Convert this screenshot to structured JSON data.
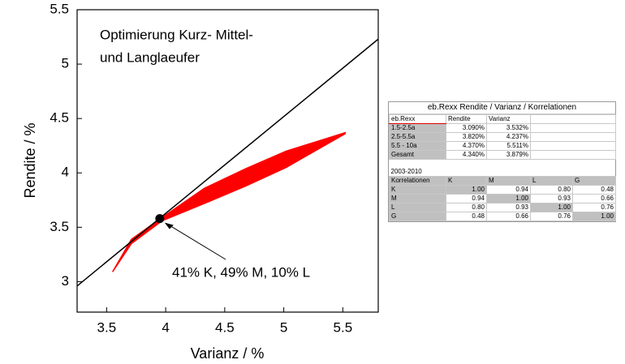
{
  "chart_data": {
    "type": "line",
    "annotations": [
      "Optimierung Kurz- Mittel-",
      "und Langlaeufer"
    ],
    "point_label": "41% K, 49% M, 10% L",
    "x_label": "Varianz / %",
    "y_label": "Rendite / %",
    "xlim": [
      3.25,
      5.8
    ],
    "xticks": [
      3.5,
      4.0,
      4.5,
      5.0,
      5.5
    ],
    "ylim": [
      2.72,
      5.5
    ],
    "yticks": [
      3.0,
      3.5,
      4.0,
      4.5,
      5.0,
      5.5
    ],
    "line": {
      "x": [
        3.25,
        5.8
      ],
      "values": [
        2.96,
        5.23
      ],
      "color": "#000000"
    },
    "band": {
      "x": [
        3.55,
        3.71,
        3.97,
        4.33,
        4.68,
        5.02,
        5.52
      ],
      "upper": [
        3.09,
        3.39,
        3.59,
        3.86,
        4.04,
        4.2,
        4.37
      ],
      "lower": [
        3.09,
        3.35,
        3.56,
        3.72,
        3.88,
        4.05,
        4.36
      ],
      "color": "#ff0000"
    },
    "point": {
      "x": 3.95,
      "y": 3.58,
      "color": "#000000"
    }
  },
  "table": {
    "title": "eb.Rexx Rendite / Varianz / Korrelationen",
    "header": [
      "eb.Rexx",
      "Rendite",
      "Varianz"
    ],
    "rows": [
      [
        "1.5-2.5a",
        "3.090%",
        "3.532%"
      ],
      [
        "2.5-5.5a",
        "3.820%",
        "4.237%"
      ],
      [
        "5.5 - 10a",
        "4.370%",
        "5.511%"
      ],
      [
        "Gesamt",
        "4.340%",
        "3.879%"
      ]
    ],
    "period": "2003-2010",
    "corr_header": [
      "Korrelationen",
      "K",
      "M",
      "L",
      "G"
    ],
    "corr_rows": [
      [
        "K",
        "1.00",
        "0.94",
        "0.80",
        "0.48"
      ],
      [
        "M",
        "0.94",
        "1.00",
        "0.93",
        "0.66"
      ],
      [
        "L",
        "0.80",
        "0.93",
        "1.00",
        "0.76"
      ],
      [
        "G",
        "0.48",
        "0.66",
        "0.76",
        "1.00"
      ]
    ]
  }
}
